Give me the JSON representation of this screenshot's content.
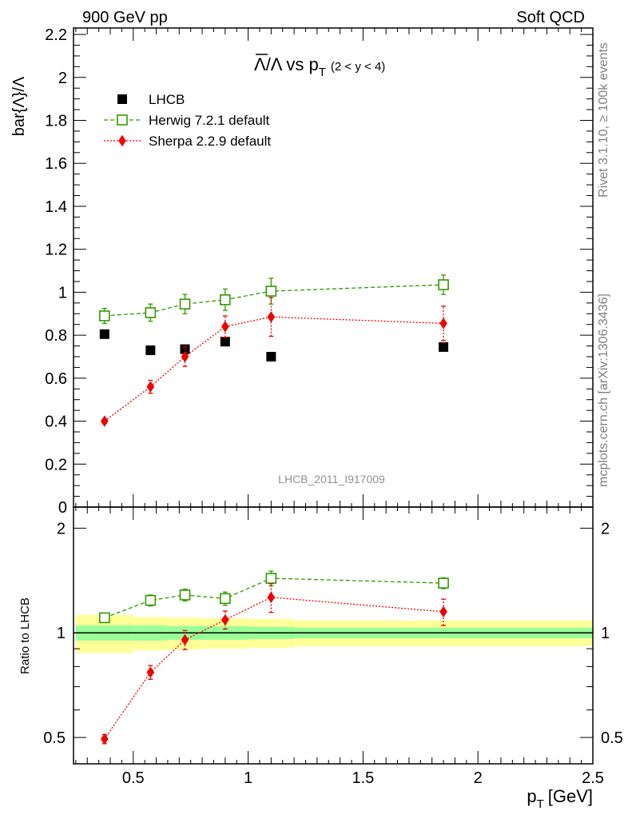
{
  "header": {
    "left": "900 GeV pp",
    "right": "Soft QCD"
  },
  "side_labels": {
    "rivet": "Rivet 3.1.10, ≥ 100k events",
    "mcplots": "mcplots.cern.ch [arXiv:1306.3436]"
  },
  "watermark": "LHCB_2011_I917009",
  "colors": {
    "data": "#000000",
    "herwig": "#339900",
    "sherpa": "#ee0000",
    "band_inner": "#99ff99",
    "band_outer": "#ffff99"
  },
  "chart_data": [
    {
      "type": "scatter",
      "title_main": "Λ/Λ vs p",
      "title_sub": "T",
      "title_suffix": "(2 < y < 4)",
      "title_overline": true,
      "xlabel": "p",
      "xlabel_sub": "T",
      "xlabel_unit": "[GeV]",
      "ylabel": "bar{Λ}/Λ",
      "xlim": [
        0.24,
        2.5
      ],
      "ylim": [
        0,
        2.23
      ],
      "yticks": [
        "0",
        "0.2",
        "0.4",
        "0.6",
        "0.8",
        "1",
        "1.2",
        "1.4",
        "1.6",
        "1.8",
        "2",
        "2.2"
      ],
      "ytick_values": [
        0,
        0.2,
        0.4,
        0.6,
        0.8,
        1.0,
        1.2,
        1.4,
        1.6,
        1.8,
        2.0,
        2.2
      ],
      "legend": "top-left",
      "series": [
        {
          "name": "LHCB",
          "marker": "filled-square",
          "x": [
            0.375,
            0.575,
            0.725,
            0.9,
            1.1,
            1.85
          ],
          "y": [
            0.805,
            0.73,
            0.735,
            0.77,
            0.7,
            0.745
          ],
          "xerr": [
            0.125,
            0.075,
            0.075,
            0.1,
            0.1,
            0.65
          ],
          "yerr": [
            0.0,
            0.0,
            0.0,
            0.0,
            0.0,
            0.0
          ]
        },
        {
          "name": "Herwig 7.2.1 default",
          "marker": "open-square",
          "line": "dashed",
          "x": [
            0.375,
            0.575,
            0.725,
            0.9,
            1.1,
            1.85
          ],
          "y": [
            0.89,
            0.905,
            0.945,
            0.965,
            1.005,
            1.035
          ],
          "yerr": [
            0.035,
            0.04,
            0.045,
            0.05,
            0.06,
            0.045
          ]
        },
        {
          "name": "Sherpa 2.2.9 default",
          "marker": "filled-diamond",
          "line": "dotted",
          "x": [
            0.375,
            0.575,
            0.725,
            0.9,
            1.1,
            1.85
          ],
          "y": [
            0.4,
            0.56,
            0.7,
            0.84,
            0.885,
            0.855
          ],
          "yerr": [
            0.01,
            0.03,
            0.045,
            0.05,
            0.09,
            0.08
          ]
        }
      ]
    },
    {
      "type": "scatter",
      "ylabel": "Ratio to LHCB",
      "ylim": [
        0.42,
        2.3
      ],
      "log_y": true,
      "yticks": [
        "0.5",
        "1",
        "2"
      ],
      "ytick_values": [
        0.5,
        1,
        2
      ],
      "xticks": [
        "0.5",
        "1",
        "1.5",
        "2",
        "2.5"
      ],
      "xtick_values": [
        0.5,
        1,
        1.5,
        2,
        2.5
      ],
      "reference_line": 1,
      "band": {
        "edges": [
          0.25,
          0.5,
          0.65,
          0.8,
          1.0,
          1.2,
          2.5
        ],
        "inner_lo": [
          0.95,
          0.95,
          0.955,
          0.955,
          0.96,
          0.965
        ],
        "inner_hi": [
          1.05,
          1.05,
          1.045,
          1.045,
          1.04,
          1.035
        ],
        "outer_lo": [
          0.875,
          0.89,
          0.895,
          0.9,
          0.905,
          0.915
        ],
        "outer_hi": [
          1.125,
          1.11,
          1.105,
          1.1,
          1.095,
          1.085
        ]
      },
      "series": [
        {
          "name": "Herwig 7.2.1 default",
          "marker": "open-square",
          "line": "dashed",
          "x": [
            0.375,
            0.575,
            0.725,
            0.9,
            1.1,
            1.85
          ],
          "y": [
            1.105,
            1.24,
            1.285,
            1.255,
            1.435,
            1.39
          ],
          "yerr": [
            0.02,
            0.045,
            0.05,
            0.055,
            0.07,
            0.05
          ]
        },
        {
          "name": "Sherpa 2.2.9 default",
          "marker": "filled-diamond",
          "line": "dotted",
          "x": [
            0.375,
            0.575,
            0.725,
            0.9,
            1.1,
            1.85
          ],
          "y": [
            0.495,
            0.77,
            0.955,
            1.09,
            1.265,
            1.15
          ],
          "yerr": [
            0.015,
            0.035,
            0.06,
            0.065,
            0.12,
            0.1
          ]
        }
      ]
    }
  ]
}
